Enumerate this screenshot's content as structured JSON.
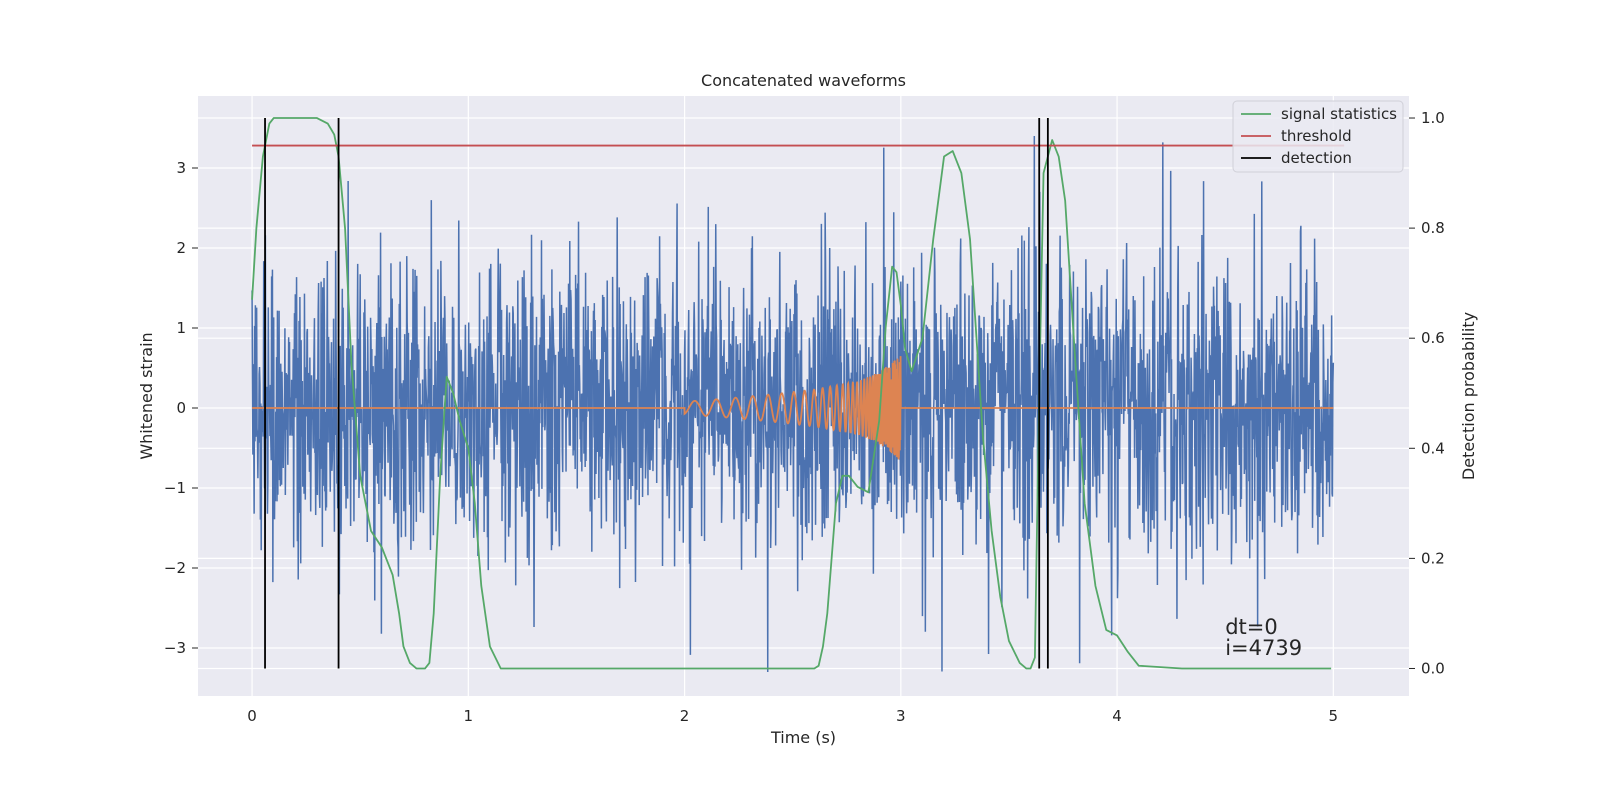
{
  "chart_data": {
    "type": "line",
    "title": "Concatenated waveforms",
    "xlabel": "Time (s)",
    "ylabel_left": "Whitened strain",
    "ylabel_right": "Detection probability",
    "xlim": [
      -0.25,
      5.35
    ],
    "ylim_left": [
      -3.6,
      3.9
    ],
    "ylim_right": [
      -0.05,
      1.04
    ],
    "x_ticks": [
      0,
      1,
      2,
      3,
      4,
      5
    ],
    "x_tick_labels": [
      "0",
      "1",
      "2",
      "3",
      "4",
      "5"
    ],
    "y_left_ticks": [
      -3,
      -2,
      -1,
      0,
      1,
      2,
      3
    ],
    "y_left_tick_labels": [
      "−3",
      "−2",
      "−1",
      "0",
      "1",
      "2",
      "3"
    ],
    "y_right_ticks": [
      0.0,
      0.2,
      0.4,
      0.6,
      0.8,
      1.0
    ],
    "y_right_tick_labels": [
      "0.0",
      "0.2",
      "0.4",
      "0.6",
      "0.8",
      "1.0"
    ],
    "grid": true,
    "legend_position": "top-right",
    "legend": [
      {
        "label": "signal statistics",
        "color": "#55a868",
        "kind": "line"
      },
      {
        "label": "threshold",
        "color": "#c44e52",
        "kind": "line"
      },
      {
        "label": "detection",
        "color": "#000000",
        "kind": "line"
      }
    ],
    "series": [
      {
        "role": "strain",
        "axis": "left",
        "color": "#4c72b0",
        "x_range": [
          0,
          5
        ],
        "noise_sigma": 0.9,
        "envelope": [
          [
            0.0,
            2.7
          ],
          [
            1.0,
            2.7
          ],
          [
            2.0,
            2.7
          ],
          [
            3.0,
            2.7
          ],
          [
            4.0,
            2.7
          ],
          [
            5.0,
            2.7
          ]
        ]
      },
      {
        "role": "injected-chirp",
        "axis": "left",
        "color": "#dd8452",
        "x": [
          0,
          2.0,
          2.0,
          2.2,
          2.4,
          2.6,
          2.8,
          2.9,
          2.95,
          3.0,
          3.0,
          5.0
        ],
        "amplitude": [
          0,
          0,
          0.08,
          0.12,
          0.17,
          0.23,
          0.33,
          0.45,
          0.55,
          0.65,
          0,
          0
        ]
      },
      {
        "name": "signal statistics",
        "axis": "right",
        "color": "#55a868",
        "x": [
          0.0,
          0.02,
          0.05,
          0.08,
          0.1,
          0.15,
          0.2,
          0.3,
          0.35,
          0.38,
          0.4,
          0.43,
          0.46,
          0.5,
          0.55,
          0.6,
          0.65,
          0.68,
          0.7,
          0.73,
          0.76,
          0.8,
          0.82,
          0.84,
          0.87,
          0.9,
          0.93,
          0.96,
          1.0,
          1.03,
          1.06,
          1.1,
          1.15,
          1.2,
          1.4,
          1.6,
          1.8,
          2.0,
          2.2,
          2.4,
          2.6,
          2.62,
          2.64,
          2.66,
          2.68,
          2.7,
          2.73,
          2.76,
          2.8,
          2.85,
          2.9,
          2.93,
          2.96,
          2.98,
          3.0,
          3.02,
          3.05,
          3.1,
          3.15,
          3.2,
          3.24,
          3.28,
          3.32,
          3.35,
          3.38,
          3.42,
          3.46,
          3.5,
          3.55,
          3.58,
          3.6,
          3.62,
          3.64,
          3.66,
          3.7,
          3.73,
          3.76,
          3.8,
          3.85,
          3.9,
          3.95,
          4.0,
          4.05,
          4.1,
          4.3,
          4.6,
          4.9,
          4.99
        ],
        "values": [
          0.67,
          0.8,
          0.93,
          0.99,
          1.0,
          1.0,
          1.0,
          1.0,
          0.99,
          0.97,
          0.93,
          0.8,
          0.55,
          0.35,
          0.25,
          0.22,
          0.17,
          0.1,
          0.04,
          0.01,
          0.0,
          0.0,
          0.01,
          0.1,
          0.35,
          0.53,
          0.5,
          0.45,
          0.4,
          0.3,
          0.15,
          0.04,
          0.0,
          0.0,
          0.0,
          0.0,
          0.0,
          0.0,
          0.0,
          0.0,
          0.0,
          0.005,
          0.04,
          0.1,
          0.2,
          0.3,
          0.35,
          0.35,
          0.33,
          0.32,
          0.45,
          0.62,
          0.73,
          0.72,
          0.66,
          0.58,
          0.54,
          0.6,
          0.78,
          0.93,
          0.94,
          0.9,
          0.78,
          0.6,
          0.42,
          0.25,
          0.13,
          0.05,
          0.01,
          0.0,
          0.0,
          0.02,
          0.5,
          0.9,
          0.96,
          0.93,
          0.85,
          0.6,
          0.3,
          0.15,
          0.07,
          0.06,
          0.03,
          0.005,
          0.0,
          0.0,
          0.0,
          0.0
        ]
      },
      {
        "name": "threshold",
        "axis": "right",
        "color": "#c44e52",
        "x": [
          0,
          5.05
        ],
        "values": [
          0.95,
          0.95
        ]
      },
      {
        "name": "detection",
        "axis": "vlines",
        "color": "#000000",
        "x": [
          0.06,
          0.4,
          3.64,
          3.68
        ]
      }
    ],
    "annotations": [
      {
        "text": "dt=0",
        "x": 4.5,
        "y_axes_fraction": 0.115
      },
      {
        "text": "i=4739",
        "x": 4.5,
        "y_axes_fraction": 0.08
      }
    ]
  }
}
